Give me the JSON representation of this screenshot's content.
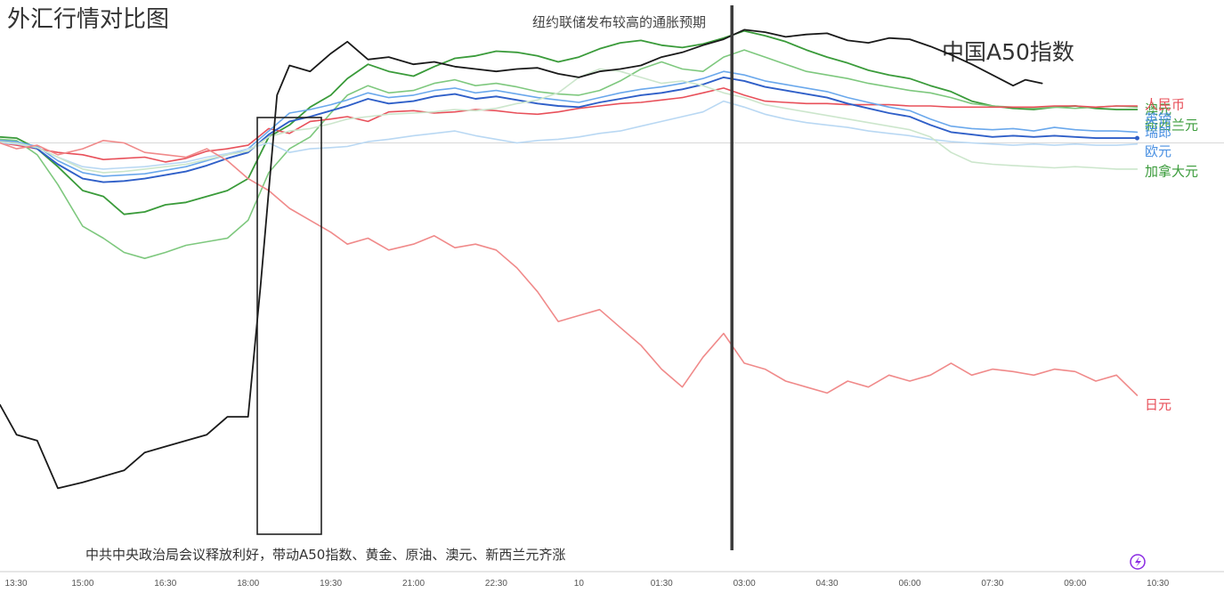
{
  "chart_data": {
    "type": "line",
    "title": "外汇行情对比图",
    "xlabel": "",
    "ylabel": "",
    "grid": false,
    "x_ticks": [
      "13:30",
      "15:00",
      "16:30",
      "18:00",
      "19:30",
      "21:00",
      "22:30",
      "10",
      "01:30",
      "03:00",
      "04:30",
      "06:00",
      "07:30",
      "09:00",
      "10:30"
    ],
    "x_range": [
      0,
      14.8
    ],
    "y_range": [
      -3.6,
      1.05
    ],
    "baseline": 0,
    "annotations": {
      "fed_event": "纽约联储发布较高的通胀预期",
      "a50_label": "中国A50指数",
      "policy_event": "中共中央政治局会议释放利好，带动A50指数、黄金、原油、澳元、新西兰元齐涨"
    },
    "policy_window": [
      -0.01,
      0.72
    ],
    "fed_event_x": 8.85,
    "series": [
      {
        "name": "澳元",
        "color": "#3a9b3a",
        "width": 1.8,
        "x": [
          0,
          0.2,
          0.45,
          0.7,
          1.0,
          1.25,
          1.5,
          1.75,
          2.0,
          2.25,
          2.5,
          2.75,
          3.0,
          3.25,
          3.5,
          3.75,
          4.0,
          4.2,
          4.45,
          4.7,
          5.0,
          5.25,
          5.5,
          5.75,
          6.0,
          6.25,
          6.5,
          6.75,
          7.0,
          7.25,
          7.5,
          7.75,
          8.0,
          8.25,
          8.5,
          8.75,
          9.0,
          9.25,
          9.5,
          9.75,
          10.0,
          10.25,
          10.5,
          10.75,
          11.0,
          11.25,
          11.5,
          11.75,
          12.0,
          12.25,
          12.5,
          12.75,
          13.0,
          13.25,
          13.5,
          13.75
        ],
        "values": [
          0.05,
          0.04,
          -0.05,
          -0.2,
          -0.4,
          -0.45,
          -0.6,
          -0.58,
          -0.52,
          -0.5,
          -0.45,
          -0.4,
          -0.3,
          0.05,
          0.15,
          0.3,
          0.4,
          0.54,
          0.66,
          0.6,
          0.56,
          0.64,
          0.71,
          0.73,
          0.77,
          0.76,
          0.73,
          0.68,
          0.72,
          0.79,
          0.84,
          0.86,
          0.82,
          0.8,
          0.83,
          0.88,
          0.94,
          0.9,
          0.85,
          0.78,
          0.72,
          0.67,
          0.61,
          0.57,
          0.54,
          0.48,
          0.43,
          0.35,
          0.31,
          0.29,
          0.28,
          0.3,
          0.31,
          0.29,
          0.28,
          0.28
        ]
      },
      {
        "name": "新西兰元",
        "color": "#7ec87e",
        "width": 1.6,
        "x": [
          0,
          0.2,
          0.45,
          0.7,
          1.0,
          1.25,
          1.5,
          1.75,
          2.0,
          2.25,
          2.5,
          2.75,
          3.0,
          3.25,
          3.5,
          3.75,
          4.0,
          4.2,
          4.45,
          4.7,
          5.0,
          5.25,
          5.5,
          5.75,
          6.0,
          6.25,
          6.5,
          6.75,
          7.0,
          7.25,
          7.5,
          7.75,
          8.0,
          8.25,
          8.5,
          8.75,
          9.0,
          9.25,
          9.5,
          9.75,
          10.0,
          10.25,
          10.5,
          10.75,
          11.0,
          11.25,
          11.5,
          11.75,
          12.0,
          12.25,
          12.5,
          12.75,
          13.0,
          13.25,
          13.5,
          13.75
        ],
        "values": [
          0.03,
          0.02,
          -0.1,
          -0.35,
          -0.7,
          -0.8,
          -0.92,
          -0.97,
          -0.92,
          -0.86,
          -0.83,
          -0.8,
          -0.65,
          -0.25,
          -0.05,
          0.05,
          0.25,
          0.4,
          0.48,
          0.42,
          0.44,
          0.5,
          0.53,
          0.48,
          0.5,
          0.47,
          0.43,
          0.41,
          0.4,
          0.44,
          0.52,
          0.62,
          0.68,
          0.62,
          0.6,
          0.72,
          0.78,
          0.72,
          0.66,
          0.6,
          0.57,
          0.54,
          0.5,
          0.47,
          0.44,
          0.42,
          0.38,
          0.33,
          0.31,
          0.3,
          0.29,
          0.3,
          0.29,
          0.3,
          0.31,
          0.3
        ]
      },
      {
        "name": "人民币",
        "color": "#e8505a",
        "width": 1.6,
        "x": [
          0,
          0.2,
          0.45,
          0.7,
          1.0,
          1.25,
          1.5,
          1.75,
          2.0,
          2.25,
          2.5,
          2.75,
          3.0,
          3.25,
          3.5,
          3.75,
          4.0,
          4.2,
          4.45,
          4.7,
          5.0,
          5.25,
          5.5,
          5.75,
          6.0,
          6.25,
          6.5,
          6.75,
          7.0,
          7.25,
          7.5,
          7.75,
          8.0,
          8.25,
          8.5,
          8.75,
          9.0,
          9.25,
          9.5,
          9.75,
          10.0,
          10.25,
          10.5,
          10.75,
          11.0,
          11.25,
          11.5,
          11.75,
          12.0,
          12.25,
          12.5,
          12.75,
          13.0,
          13.25,
          13.5,
          13.75
        ],
        "values": [
          0.0,
          -0.02,
          -0.05,
          -0.08,
          -0.1,
          -0.14,
          -0.13,
          -0.12,
          -0.16,
          -0.13,
          -0.07,
          -0.05,
          -0.02,
          0.12,
          0.08,
          0.18,
          0.2,
          0.22,
          0.18,
          0.26,
          0.27,
          0.25,
          0.26,
          0.28,
          0.27,
          0.25,
          0.24,
          0.26,
          0.29,
          0.31,
          0.33,
          0.34,
          0.36,
          0.38,
          0.42,
          0.46,
          0.4,
          0.35,
          0.34,
          0.33,
          0.33,
          0.32,
          0.32,
          0.32,
          0.31,
          0.31,
          0.3,
          0.3,
          0.3,
          0.3,
          0.3,
          0.31,
          0.31,
          0.3,
          0.31,
          0.31
        ]
      },
      {
        "name": "英镑",
        "color": "#6aa8ec",
        "width": 1.6,
        "x": [
          0,
          0.2,
          0.45,
          0.7,
          1.0,
          1.25,
          1.5,
          1.75,
          2.0,
          2.25,
          2.5,
          2.75,
          3.0,
          3.25,
          3.5,
          3.75,
          4.0,
          4.2,
          4.45,
          4.7,
          5.0,
          5.25,
          5.5,
          5.75,
          6.0,
          6.25,
          6.5,
          6.75,
          7.0,
          7.25,
          7.5,
          7.75,
          8.0,
          8.25,
          8.5,
          8.75,
          9.0,
          9.25,
          9.5,
          9.75,
          10.0,
          10.25,
          10.5,
          10.75,
          11.0,
          11.25,
          11.5,
          11.75,
          12.0,
          12.25,
          12.5,
          12.75,
          13.0,
          13.25,
          13.5,
          13.75
        ],
        "values": [
          0.02,
          0.01,
          -0.03,
          -0.15,
          -0.25,
          -0.28,
          -0.27,
          -0.26,
          -0.23,
          -0.2,
          -0.15,
          -0.1,
          -0.05,
          0.1,
          0.25,
          0.28,
          0.32,
          0.36,
          0.42,
          0.38,
          0.4,
          0.44,
          0.46,
          0.42,
          0.44,
          0.41,
          0.38,
          0.36,
          0.34,
          0.38,
          0.42,
          0.45,
          0.47,
          0.5,
          0.54,
          0.6,
          0.57,
          0.52,
          0.49,
          0.46,
          0.43,
          0.38,
          0.34,
          0.3,
          0.27,
          0.2,
          0.14,
          0.12,
          0.11,
          0.12,
          0.1,
          0.13,
          0.11,
          0.1,
          0.1,
          0.09
        ]
      },
      {
        "name": "瑞郎",
        "color": "#2f5fc8",
        "width": 1.9,
        "x": [
          0,
          0.2,
          0.45,
          0.7,
          1.0,
          1.25,
          1.5,
          1.75,
          2.0,
          2.25,
          2.5,
          2.75,
          3.0,
          3.25,
          3.5,
          3.75,
          4.0,
          4.2,
          4.45,
          4.7,
          5.0,
          5.25,
          5.5,
          5.75,
          6.0,
          6.25,
          6.5,
          6.75,
          7.0,
          7.25,
          7.5,
          7.75,
          8.0,
          8.25,
          8.5,
          8.75,
          9.0,
          9.25,
          9.5,
          9.75,
          10.0,
          10.25,
          10.5,
          10.75,
          11.0,
          11.25,
          11.5,
          11.75,
          12.0,
          12.25,
          12.5,
          12.75,
          13.0,
          13.25,
          13.5,
          13.75
        ],
        "values": [
          0.01,
          0.0,
          -0.05,
          -0.18,
          -0.3,
          -0.33,
          -0.32,
          -0.3,
          -0.27,
          -0.24,
          -0.19,
          -0.13,
          -0.08,
          0.07,
          0.18,
          0.22,
          0.27,
          0.31,
          0.37,
          0.33,
          0.35,
          0.39,
          0.41,
          0.37,
          0.39,
          0.36,
          0.33,
          0.31,
          0.3,
          0.34,
          0.37,
          0.4,
          0.42,
          0.45,
          0.49,
          0.55,
          0.52,
          0.47,
          0.44,
          0.41,
          0.38,
          0.33,
          0.29,
          0.25,
          0.22,
          0.15,
          0.09,
          0.07,
          0.05,
          0.06,
          0.05,
          0.06,
          0.05,
          0.04,
          0.04,
          0.04
        ]
      },
      {
        "name": "欧元",
        "color": "#b9d8f3",
        "width": 1.6,
        "x": [
          0,
          0.2,
          0.45,
          0.7,
          1.0,
          1.25,
          1.5,
          1.75,
          2.0,
          2.25,
          2.5,
          2.75,
          3.0,
          3.25,
          3.5,
          3.75,
          4.0,
          4.2,
          4.45,
          4.7,
          5.0,
          5.25,
          5.5,
          5.75,
          6.0,
          6.25,
          6.5,
          6.75,
          7.0,
          7.25,
          7.5,
          7.75,
          8.0,
          8.25,
          8.5,
          8.75,
          9.0,
          9.25,
          9.5,
          9.75,
          10.0,
          10.25,
          10.5,
          10.75,
          11.0,
          11.25,
          11.5,
          11.75,
          12.0,
          12.25,
          12.5,
          12.75,
          13.0,
          13.25,
          13.5,
          13.75
        ],
        "values": [
          0.0,
          -0.01,
          -0.04,
          -0.12,
          -0.2,
          -0.22,
          -0.21,
          -0.2,
          -0.18,
          -0.16,
          -0.12,
          -0.09,
          -0.05,
          0.0,
          -0.08,
          -0.05,
          -0.04,
          -0.03,
          0.01,
          0.03,
          0.06,
          0.08,
          0.1,
          0.06,
          0.03,
          0.0,
          0.02,
          0.03,
          0.05,
          0.08,
          0.1,
          0.14,
          0.18,
          0.22,
          0.26,
          0.35,
          0.3,
          0.24,
          0.2,
          0.17,
          0.15,
          0.13,
          0.1,
          0.08,
          0.06,
          0.03,
          0.01,
          0.0,
          -0.01,
          -0.02,
          -0.01,
          -0.02,
          -0.01,
          -0.02,
          -0.02,
          -0.01
        ]
      },
      {
        "name": "加拿大元",
        "color": "#cce6cc",
        "width": 1.6,
        "x": [
          0,
          0.2,
          0.45,
          0.7,
          1.0,
          1.25,
          1.5,
          1.75,
          2.0,
          2.25,
          2.5,
          2.75,
          3.0,
          3.25,
          3.5,
          3.75,
          4.0,
          4.2,
          4.45,
          4.7,
          5.0,
          5.25,
          5.5,
          5.75,
          6.0,
          6.25,
          6.5,
          6.75,
          7.0,
          7.25,
          7.5,
          7.75,
          8.0,
          8.25,
          8.5,
          8.75,
          9.0,
          9.25,
          9.5,
          9.75,
          10.0,
          10.25,
          10.5,
          10.75,
          11.0,
          11.25,
          11.5,
          11.75,
          12.0,
          12.25,
          12.5,
          12.75,
          13.0,
          13.25,
          13.5,
          13.75
        ],
        "values": [
          0.01,
          0.0,
          -0.04,
          -0.12,
          -0.22,
          -0.25,
          -0.24,
          -0.22,
          -0.2,
          -0.18,
          -0.14,
          -0.1,
          -0.07,
          0.05,
          0.1,
          0.12,
          0.16,
          0.2,
          0.22,
          0.24,
          0.25,
          0.26,
          0.28,
          0.27,
          0.29,
          0.33,
          0.36,
          0.42,
          0.55,
          0.62,
          0.6,
          0.55,
          0.5,
          0.52,
          0.48,
          0.42,
          0.38,
          0.32,
          0.29,
          0.26,
          0.23,
          0.2,
          0.17,
          0.14,
          0.11,
          0.05,
          -0.08,
          -0.16,
          -0.18,
          -0.19,
          -0.2,
          -0.21,
          -0.2,
          -0.21,
          -0.22,
          -0.22
        ]
      },
      {
        "name": "日元",
        "color": "#f08a8a",
        "width": 1.6,
        "x": [
          0,
          0.2,
          0.45,
          0.7,
          1.0,
          1.25,
          1.5,
          1.75,
          2.0,
          2.25,
          2.5,
          2.75,
          3.0,
          3.25,
          3.5,
          3.75,
          4.0,
          4.2,
          4.45,
          4.7,
          5.0,
          5.25,
          5.5,
          5.75,
          6.0,
          6.25,
          6.5,
          6.75,
          7.0,
          7.25,
          7.5,
          7.75,
          8.0,
          8.25,
          8.5,
          8.75,
          9.0,
          9.25,
          9.5,
          9.75,
          10.0,
          10.25,
          10.5,
          10.75,
          11.0,
          11.25,
          11.5,
          11.75,
          12.0,
          12.25,
          12.5,
          12.75,
          13.0,
          13.25,
          13.5,
          13.75
        ],
        "values": [
          0.0,
          -0.05,
          -0.02,
          -0.1,
          -0.05,
          0.02,
          0.0,
          -0.08,
          -0.1,
          -0.12,
          -0.05,
          -0.15,
          -0.3,
          -0.4,
          -0.55,
          -0.65,
          -0.75,
          -0.85,
          -0.8,
          -0.9,
          -0.85,
          -0.78,
          -0.88,
          -0.85,
          -0.9,
          -1.05,
          -1.25,
          -1.5,
          -1.45,
          -1.4,
          -1.55,
          -1.7,
          -1.9,
          -2.05,
          -1.8,
          -1.6,
          -1.85,
          -1.9,
          -2.0,
          -2.05,
          -2.1,
          -2.0,
          -2.05,
          -1.95,
          -2.0,
          -1.95,
          -1.85,
          -1.95,
          -1.9,
          -1.92,
          -1.95,
          -1.9,
          -1.92,
          -2.0,
          -1.95,
          -2.12
        ]
      },
      {
        "name": "中国A50指数",
        "color": "#1a1a1a",
        "width": 1.8,
        "x": [
          0,
          0.2,
          0.45,
          0.7,
          1.0,
          1.25,
          1.5,
          1.75,
          2.0,
          2.25,
          2.5,
          2.75,
          3.0,
          3.15,
          3.35,
          3.5,
          3.75,
          4.0,
          4.2,
          4.45,
          4.7,
          5.0,
          5.25,
          5.5,
          5.75,
          6.0,
          6.25,
          6.5,
          6.75,
          7.0,
          7.25,
          7.5,
          7.75,
          8.0,
          8.25,
          8.5,
          8.75,
          9.0,
          9.25,
          9.5,
          9.75,
          10.0,
          10.25,
          10.5,
          10.75,
          11.0,
          11.25,
          11.5,
          11.75,
          12.0,
          12.25,
          12.4,
          12.6
        ],
        "values": [
          -2.2,
          -2.45,
          -2.5,
          -2.9,
          -2.85,
          -2.8,
          -2.75,
          -2.6,
          -2.55,
          -2.5,
          -2.45,
          -2.3,
          -2.3,
          -1.2,
          0.4,
          0.65,
          0.6,
          0.75,
          0.85,
          0.7,
          0.72,
          0.66,
          0.68,
          0.64,
          0.62,
          0.6,
          0.62,
          0.63,
          0.58,
          0.55,
          0.6,
          0.62,
          0.65,
          0.72,
          0.76,
          0.82,
          0.87,
          0.95,
          0.93,
          0.89,
          0.91,
          0.92,
          0.86,
          0.84,
          0.88,
          0.87,
          0.81,
          0.74,
          0.66,
          0.57,
          0.48,
          0.53,
          0.5
        ]
      }
    ],
    "labels": [
      {
        "text": "澳元",
        "color": "#3a9b3a",
        "y": 0.28
      },
      {
        "text": "新西兰元",
        "color": "#3a9b3a",
        "y": 0.15
      },
      {
        "text": "人民币",
        "color": "#e8505a",
        "y": 0.32
      },
      {
        "text": "英镑",
        "color": "#4a90e2",
        "y": 0.2
      },
      {
        "text": "瑞郎",
        "color": "#4a90e2",
        "y": 0.09
      },
      {
        "text": "欧元",
        "color": "#4a90e2",
        "y": -0.07
      },
      {
        "text": "加拿大元",
        "color": "#3a9b3a",
        "y": -0.24
      },
      {
        "text": "日元",
        "color": "#e8505a",
        "y": -2.2
      }
    ]
  }
}
